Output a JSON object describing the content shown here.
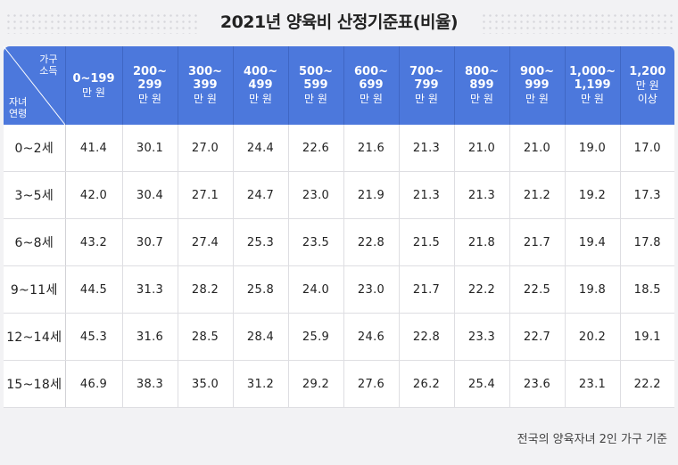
{
  "title": "2021년 양육비 산정기준표(비율)",
  "corner": {
    "income_label_1": "가구",
    "income_label_2": "소득",
    "age_label_1": "자녀",
    "age_label_2": "연령"
  },
  "columns": [
    {
      "range": "0~199",
      "unit": "만 원"
    },
    {
      "range": "200~\n299",
      "unit": "만 원"
    },
    {
      "range": "300~\n399",
      "unit": "만 원"
    },
    {
      "range": "400~\n499",
      "unit": "만 원"
    },
    {
      "range": "500~\n599",
      "unit": "만 원"
    },
    {
      "range": "600~\n699",
      "unit": "만 원"
    },
    {
      "range": "700~\n799",
      "unit": "만 원"
    },
    {
      "range": "800~\n899",
      "unit": "만 원"
    },
    {
      "range": "900~\n999",
      "unit": "만 원"
    },
    {
      "range": "1,000~\n1,199",
      "unit": "만 원"
    },
    {
      "range": "1,200",
      "unit": "만 원\n이상"
    }
  ],
  "rows": [
    {
      "age": "0~2세",
      "values": [
        "41.4",
        "30.1",
        "27.0",
        "24.4",
        "22.6",
        "21.6",
        "21.3",
        "21.0",
        "21.0",
        "19.0",
        "17.0"
      ]
    },
    {
      "age": "3~5세",
      "values": [
        "42.0",
        "30.4",
        "27.1",
        "24.7",
        "23.0",
        "21.9",
        "21.3",
        "21.3",
        "21.2",
        "19.2",
        "17.3"
      ]
    },
    {
      "age": "6~8세",
      "values": [
        "43.2",
        "30.7",
        "27.4",
        "25.3",
        "23.5",
        "22.8",
        "21.5",
        "21.8",
        "21.7",
        "19.4",
        "17.8"
      ]
    },
    {
      "age": "9~11세",
      "values": [
        "44.5",
        "31.3",
        "28.2",
        "25.8",
        "24.0",
        "23.0",
        "21.7",
        "22.2",
        "22.5",
        "19.8",
        "18.5"
      ]
    },
    {
      "age": "12~14세",
      "values": [
        "45.3",
        "31.6",
        "28.5",
        "28.4",
        "25.9",
        "24.6",
        "22.8",
        "23.3",
        "22.7",
        "20.2",
        "19.1"
      ]
    },
    {
      "age": "15~18세",
      "values": [
        "46.9",
        "38.3",
        "35.0",
        "31.2",
        "29.2",
        "27.6",
        "26.2",
        "25.4",
        "23.6",
        "23.1",
        "22.2"
      ]
    }
  ],
  "footnote": "전국의 양육자녀 2인 가구 기준",
  "colors": {
    "header": "#4c78dc",
    "background": "#f2f2f4",
    "cell": "#ffffff"
  }
}
